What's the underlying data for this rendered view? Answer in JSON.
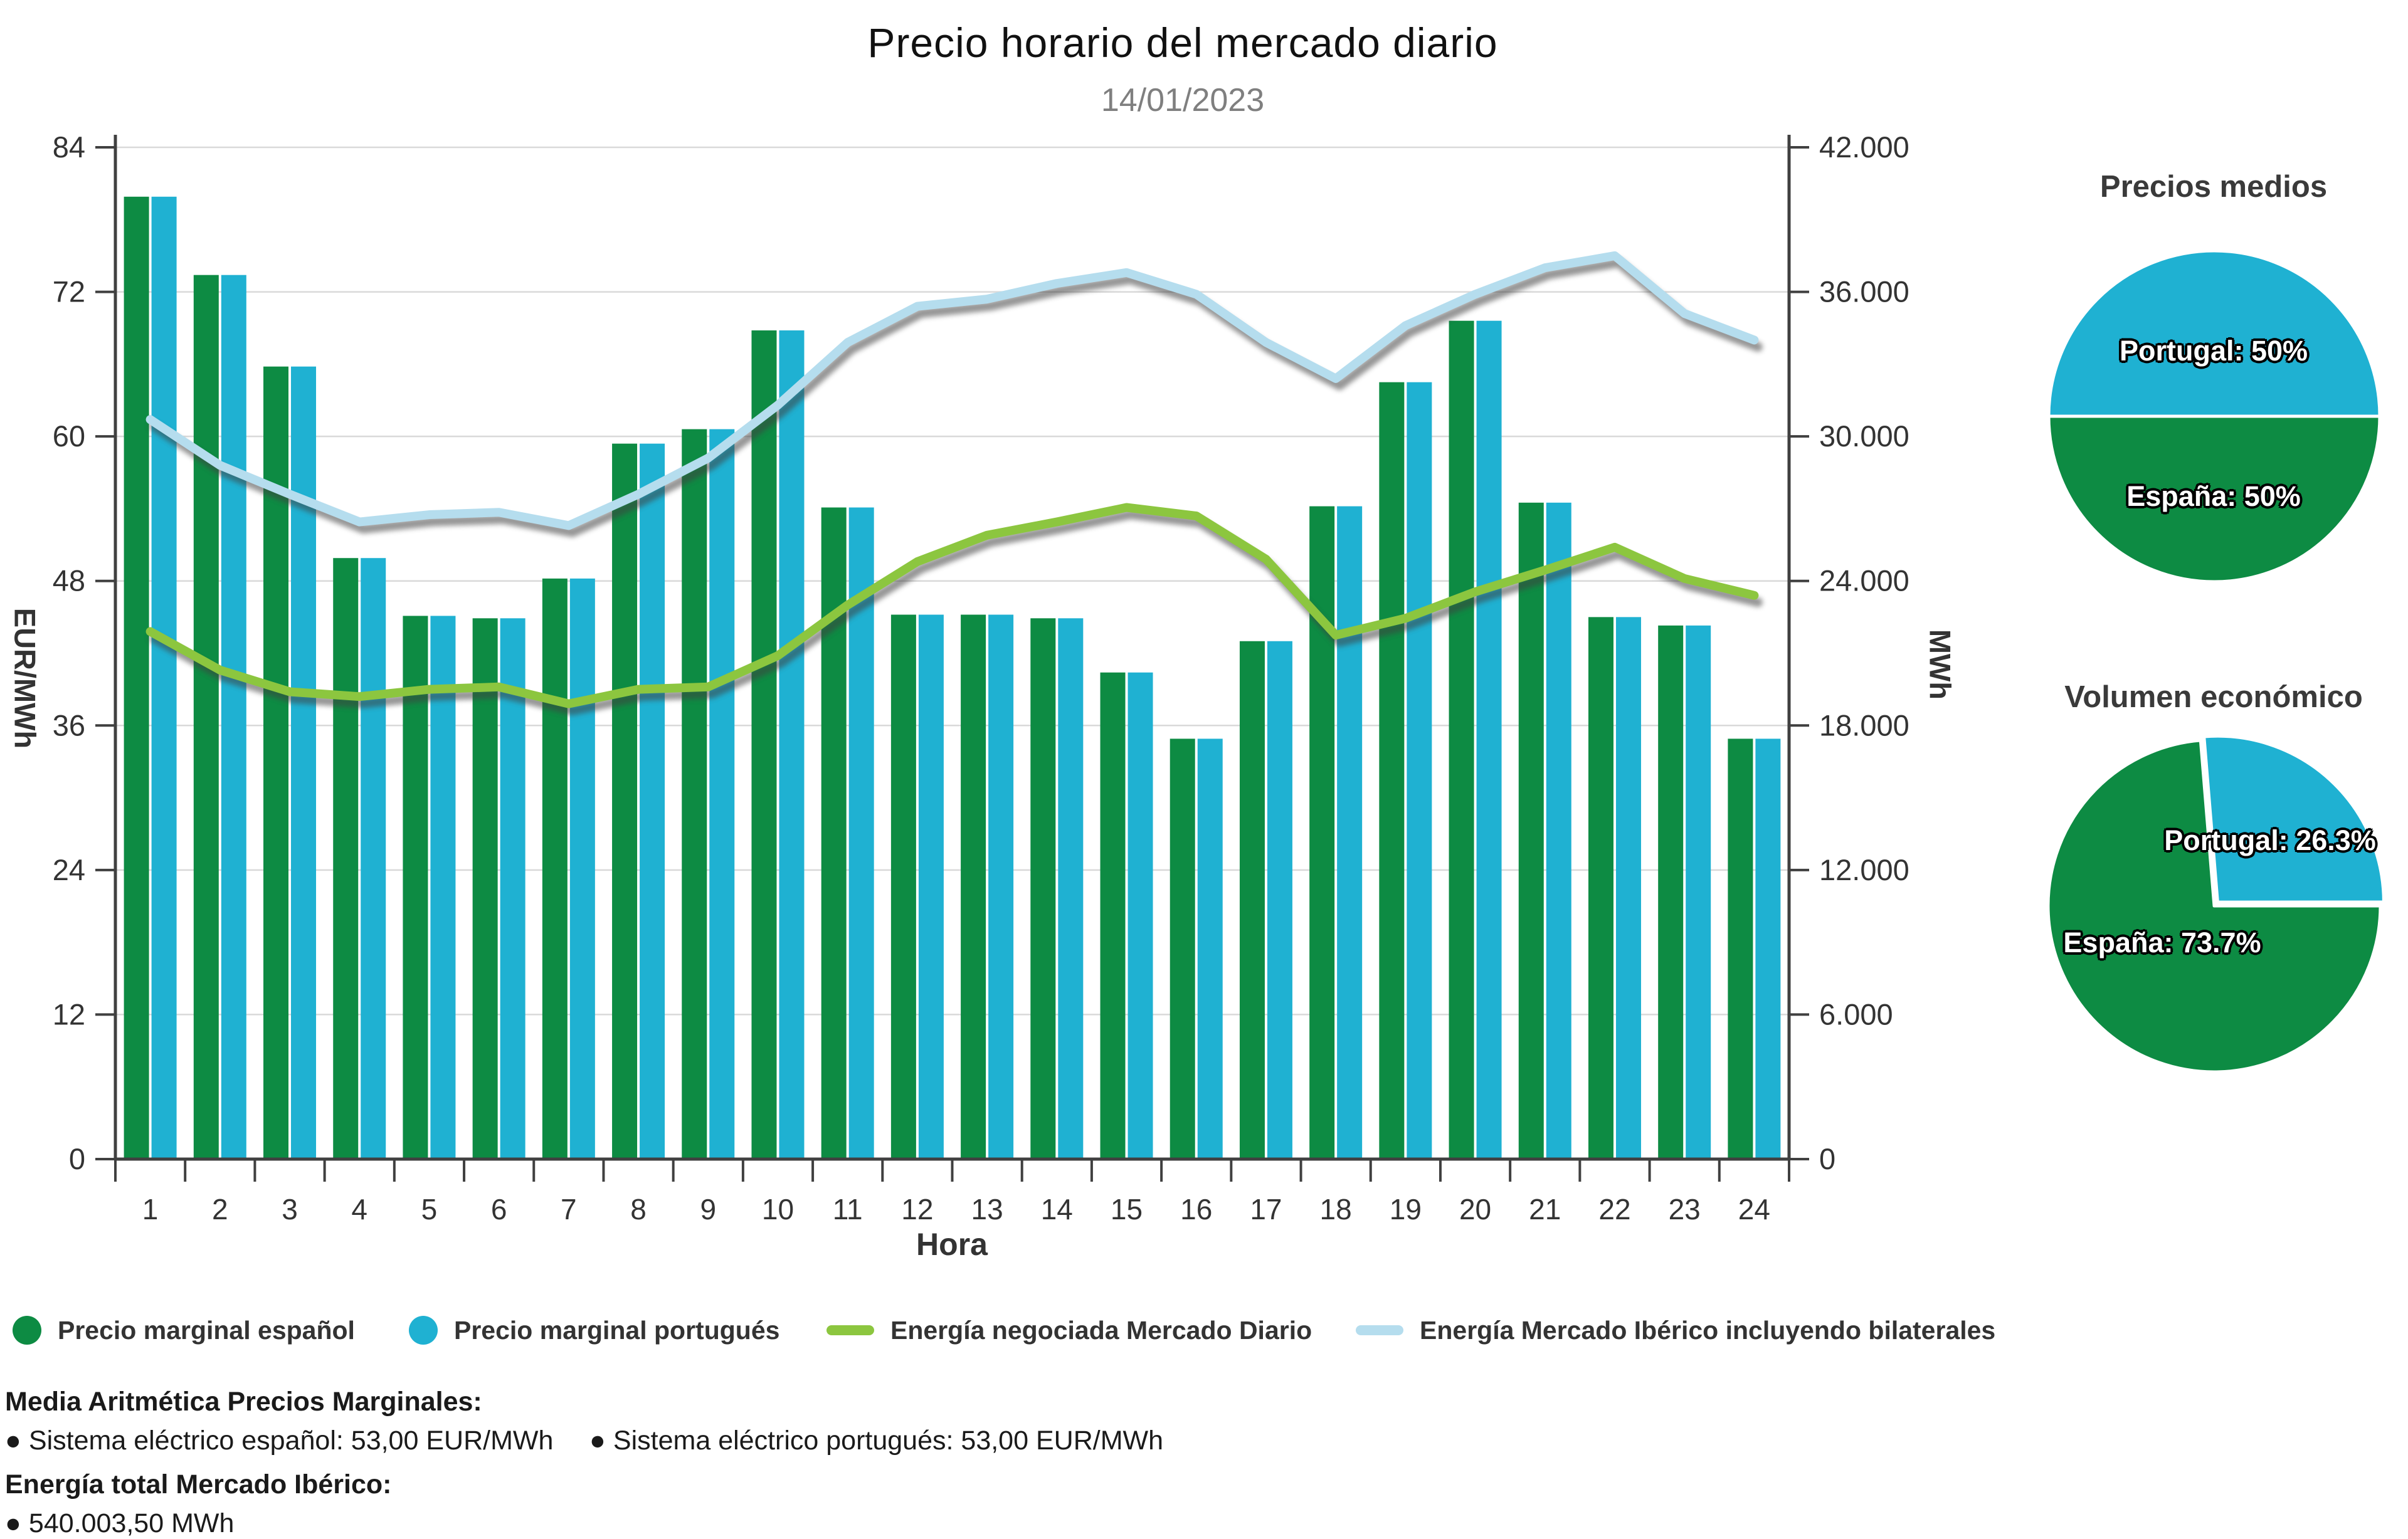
{
  "title": "Precio horario del mercado diario",
  "date": "14/01/2023",
  "colors": {
    "bar_spain_green": "#0d8b43",
    "bar_portugal_cyan": "#1fb1d2",
    "line_daily_market_green": "#8cc63f",
    "line_iberian_lightblue": "#b5ddee",
    "line_shadow": "#3f3f3f",
    "gridline": "#d9d9d9",
    "axis": "#404040",
    "tick_text": "#333333",
    "title_text": "#111111",
    "date_text": "#7f7f7f"
  },
  "chart_data": [
    {
      "type": "combo",
      "title": "Precio horario del mercado diario",
      "subtitle": "14/01/2023",
      "xlabel": "Hora",
      "x_categories": [
        "1",
        "2",
        "3",
        "4",
        "5",
        "6",
        "7",
        "8",
        "9",
        "10",
        "11",
        "12",
        "13",
        "14",
        "15",
        "16",
        "17",
        "18",
        "19",
        "20",
        "21",
        "22",
        "23",
        "24"
      ],
      "y_left": {
        "label": "EUR/MWh",
        "range": [
          0,
          84
        ],
        "tick_values": [
          0,
          12,
          24,
          36,
          48,
          60,
          72,
          84
        ],
        "tick_labels": [
          "0",
          "12",
          "24",
          "36",
          "48",
          "60",
          "72",
          "84"
        ]
      },
      "y_right": {
        "label": "MWh",
        "range": [
          0,
          42000
        ],
        "tick_values": [
          0,
          6000,
          12000,
          18000,
          24000,
          30000,
          36000,
          42000
        ],
        "tick_labels": [
          "0",
          "6.000",
          "12.000",
          "18.000",
          "24.000",
          "30.000",
          "36.000",
          "42.000"
        ]
      },
      "grid": true,
      "legend_position": "bottom",
      "bar_series": [
        {
          "name": "Precio marginal español",
          "axis": "left",
          "color": "#0d8b43",
          "values": [
            79.9,
            73.4,
            65.8,
            49.9,
            45.1,
            44.9,
            48.2,
            59.4,
            60.6,
            68.8,
            54.1,
            45.2,
            45.2,
            44.9,
            40.4,
            34.9,
            43.0,
            54.2,
            64.5,
            69.6,
            54.5,
            45.0,
            44.3,
            34.9
          ]
        },
        {
          "name": "Precio marginal portugués",
          "axis": "left",
          "color": "#1fb1d2",
          "values": [
            79.9,
            73.4,
            65.8,
            49.9,
            45.1,
            44.9,
            48.2,
            59.4,
            60.6,
            68.8,
            54.1,
            45.2,
            45.2,
            44.9,
            40.4,
            34.9,
            43.0,
            54.2,
            64.5,
            69.6,
            54.5,
            45.0,
            44.3,
            34.9
          ]
        }
      ],
      "line_series": [
        {
          "name": "Energía negociada Mercado Diario",
          "axis": "right",
          "color": "#8cc63f",
          "values": [
            21900,
            20300,
            19400,
            19200,
            19500,
            19600,
            18900,
            19500,
            19600,
            20900,
            23000,
            24800,
            25900,
            26450,
            27050,
            26700,
            24900,
            21750,
            22450,
            23550,
            24450,
            25400,
            24100,
            23400
          ]
        },
        {
          "name": "Energía Mercado Ibérico incluyendo bilaterales",
          "axis": "right",
          "color": "#b5ddee",
          "values": [
            30700,
            28800,
            27600,
            26450,
            26750,
            26850,
            26300,
            27600,
            29100,
            31300,
            33900,
            35400,
            35700,
            36350,
            36800,
            35900,
            33900,
            32400,
            34600,
            35900,
            37000,
            37500,
            35100,
            34000
          ]
        }
      ]
    },
    {
      "type": "pie",
      "title": "Precios medios",
      "start_angle": -90,
      "slices": [
        {
          "label": "Portugal: 50%",
          "value": 50,
          "color": "#1fb1d2",
          "exploded": false
        },
        {
          "label": "España: 50%",
          "value": 50,
          "color": "#0d8b43",
          "exploded": false
        }
      ]
    },
    {
      "type": "pie",
      "title": "Volumen económico",
      "start_angle": -4.7,
      "slices": [
        {
          "label": "Portugal: 26.3%",
          "value": 26.3,
          "color": "#1fb1d2",
          "exploded": true
        },
        {
          "label": "España: 73.7%",
          "value": 73.7,
          "color": "#0d8b43",
          "exploded": false
        }
      ]
    }
  ],
  "legend": {
    "items": [
      {
        "label": "Precio marginal español",
        "marker": "circle",
        "color": "#0d8b43"
      },
      {
        "label": "Precio marginal portugués",
        "marker": "circle",
        "color": "#1fb1d2"
      },
      {
        "label": "Energía negociada Mercado Diario",
        "marker": "line",
        "color": "#8cc63f"
      },
      {
        "label": "Energía Mercado Ibérico incluyendo bilaterales",
        "marker": "line",
        "color": "#b5ddee"
      }
    ]
  },
  "footer": {
    "heading_prices": "Media Aritmética Precios Marginales:",
    "bullet_spain": "● Sistema eléctrico español: 53,00 EUR/MWh",
    "bullet_portugal": "● Sistema eléctrico portugués: 53,00 EUR/MWh",
    "heading_energy": "Energía total Mercado Ibérico:",
    "bullet_total": "● 540.003,50 MWh"
  }
}
